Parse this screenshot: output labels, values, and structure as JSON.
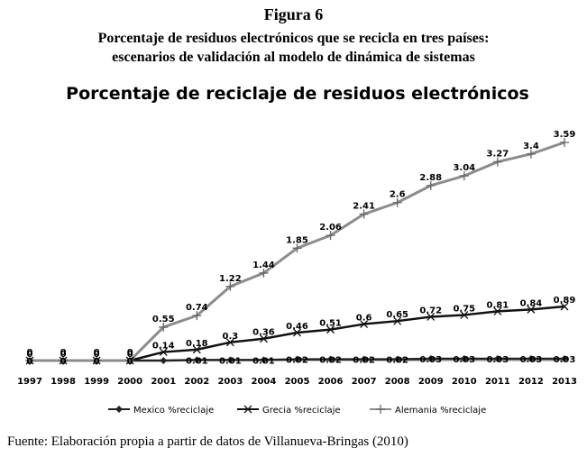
{
  "figure": {
    "number": "Figura 6",
    "caption_line1": "Porcentaje de residuos electrónicos que se recicla en tres países:",
    "caption_line2": "escenarios de validación al modelo de dinámica de sistemas",
    "source": "Fuente: Elaboración propia a partir de datos de Villanueva-Bringas (2010)"
  },
  "chart_data": {
    "type": "line",
    "title": "Porcentaje de reciclaje de residuos electrónicos",
    "xlabel": "",
    "ylabel": "",
    "ylim": [
      0,
      4
    ],
    "grid": false,
    "legend_position": "bottom",
    "categories": [
      "1997",
      "1998",
      "1999",
      "2000",
      "2001",
      "2002",
      "2003",
      "2004",
      "2005",
      "2006",
      "2007",
      "2008",
      "2009",
      "2010",
      "2011",
      "2012",
      "2013"
    ],
    "series": [
      {
        "name": "Mexico %reciclaje",
        "color": "#222222",
        "marker": "diamond-icon",
        "values": [
          0,
          0,
          0,
          0,
          0,
          0.01,
          0.01,
          0.01,
          0.02,
          0.02,
          0.02,
          0.02,
          0.03,
          0.03,
          0.03,
          0.03,
          0.03
        ],
        "labels": [
          "0",
          "0",
          "0",
          "0",
          "",
          "0.01",
          "0.01",
          "0.01",
          "0.02",
          "0.02",
          "0.02",
          "0.02",
          "0.03",
          "0.03",
          "0.03",
          "0.03",
          "0.03"
        ]
      },
      {
        "name": "Grecia %reciclaje",
        "color": "#111111",
        "marker": "x-icon",
        "values": [
          0,
          0,
          0,
          0,
          0.14,
          0.18,
          0.3,
          0.36,
          0.46,
          0.51,
          0.6,
          0.65,
          0.72,
          0.75,
          0.81,
          0.84,
          0.89
        ],
        "labels": [
          "0",
          "0",
          "0",
          "0",
          "0.14",
          "0.18",
          "0.3",
          "0.36",
          "0.46",
          "0.51",
          "0.6",
          "0.65",
          "0.72",
          "0.75",
          "0.81",
          "0.84",
          "0.89"
        ]
      },
      {
        "name": "Alemania %reciclaje",
        "color": "#8c8c8c",
        "marker": "plus-icon",
        "values": [
          0,
          0,
          0,
          0,
          0.55,
          0.74,
          1.22,
          1.44,
          1.85,
          2.06,
          2.41,
          2.6,
          2.88,
          3.04,
          3.27,
          3.4,
          3.59
        ],
        "labels": [
          "0",
          "0",
          "0",
          "0",
          "0.55",
          "0.74",
          "1.22",
          "1.44",
          "1.85",
          "2.06",
          "2.41",
          "2.6",
          "2.88",
          "3.04",
          "3.27",
          "3.4",
          "3.59"
        ]
      }
    ]
  }
}
